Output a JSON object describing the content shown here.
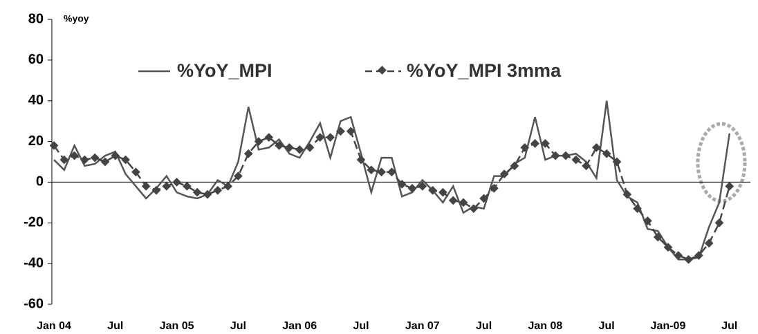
{
  "chart_data": {
    "type": "line",
    "y_label": "%yoy",
    "categories": [
      "Jan 04",
      null,
      null,
      null,
      null,
      null,
      "Jul",
      null,
      null,
      null,
      null,
      null,
      "Jan 05",
      null,
      null,
      null,
      null,
      null,
      "Jul",
      null,
      null,
      null,
      null,
      null,
      "Jan  06",
      null,
      null,
      null,
      null,
      null,
      "Jul",
      null,
      null,
      null,
      null,
      null,
      "Jan  07",
      null,
      null,
      null,
      null,
      null,
      "Jul",
      null,
      null,
      null,
      null,
      null,
      "Jan 08",
      null,
      null,
      null,
      null,
      null,
      "Jul",
      null,
      null,
      null,
      null,
      null,
      "Jan-09",
      null,
      null,
      null,
      null,
      null,
      "Jul"
    ],
    "series": [
      {
        "name": "%YoY_MPI",
        "color": "#555555",
        "values": [
          11,
          6,
          18,
          8,
          9,
          13,
          15,
          4,
          -2,
          -8,
          -3,
          3,
          -5,
          -7,
          -8,
          -6,
          1,
          -2,
          10,
          37,
          16,
          17,
          21,
          14,
          12,
          20,
          29,
          12,
          30,
          32,
          14,
          -5,
          12,
          12,
          -7,
          -5,
          1,
          -4,
          -10,
          -2,
          -15,
          -12,
          -13,
          3,
          3,
          9,
          12,
          32,
          11,
          13,
          13,
          14,
          10,
          2,
          40,
          1,
          -7,
          -10,
          -23,
          -24,
          -32,
          -38,
          -38,
          -37,
          -22,
          -10,
          24
        ]
      },
      {
        "name": "%YoY_MPI 3mma",
        "color": "#444444",
        "values": [
          18,
          11,
          13,
          11,
          12,
          10,
          13,
          11,
          5,
          -2,
          -4,
          -2,
          0,
          -2,
          -5,
          -6,
          -4,
          -2,
          3,
          14,
          20,
          22,
          18,
          17,
          16,
          17,
          22,
          22,
          25,
          25,
          11,
          6,
          5,
          5,
          -1,
          -3,
          -2,
          -4,
          -5,
          -9,
          -10,
          -13,
          -8,
          -3,
          4,
          8,
          17,
          19,
          19,
          13,
          13,
          11,
          8,
          17,
          14,
          10,
          -6,
          -13,
          -19,
          -27,
          -32,
          -36,
          -38,
          -36,
          -30,
          -20,
          -2
        ]
      }
    ],
    "ylim": [
      -60,
      80
    ],
    "yticks": [
      -60,
      -40,
      -20,
      0,
      20,
      40,
      60,
      80
    ],
    "grid": false
  }
}
